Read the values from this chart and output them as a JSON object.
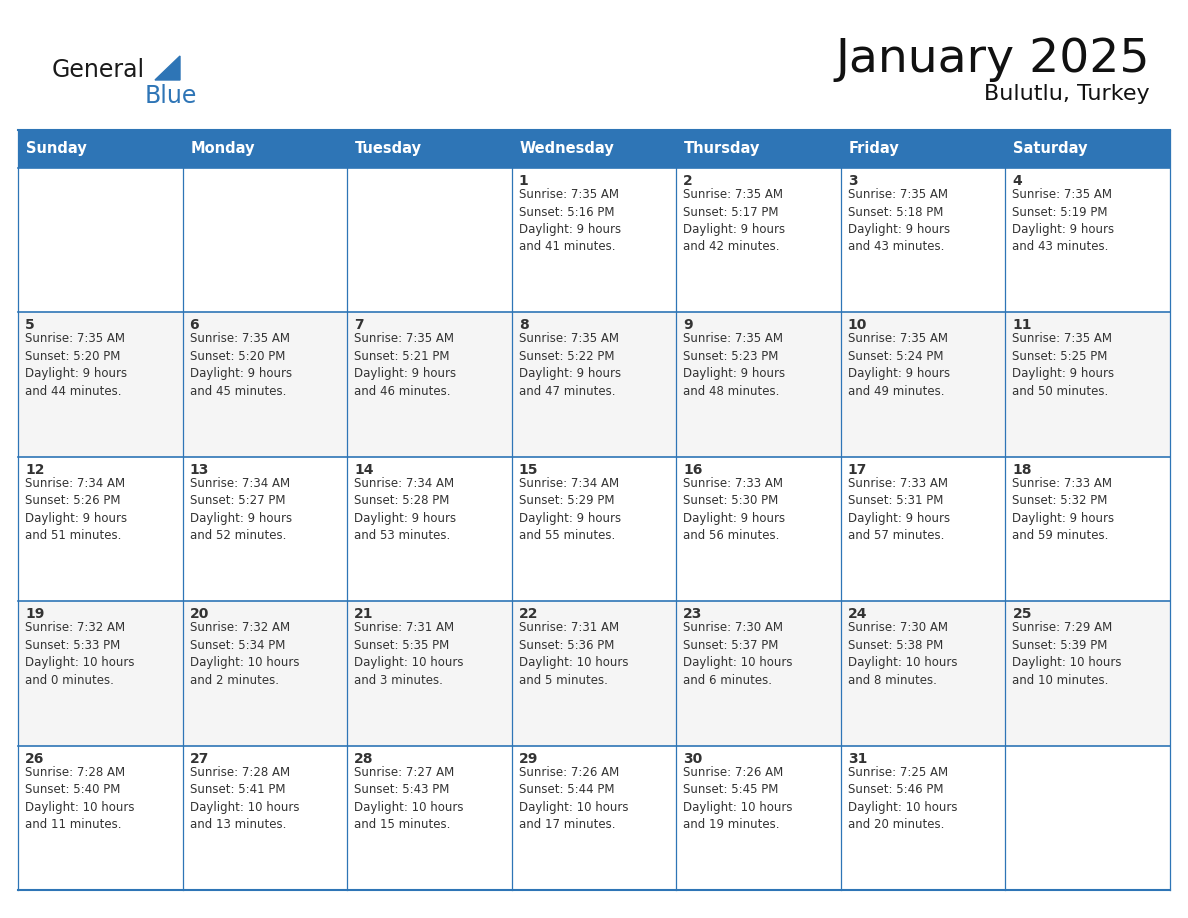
{
  "title": "January 2025",
  "subtitle": "Bulutlu, Turkey",
  "header_color": "#2E75B6",
  "header_text_color": "#FFFFFF",
  "border_color": "#2E75B6",
  "text_color": "#333333",
  "days_of_week": [
    "Sunday",
    "Monday",
    "Tuesday",
    "Wednesday",
    "Thursday",
    "Friday",
    "Saturday"
  ],
  "calendar_data": [
    [
      {
        "day": "",
        "info": ""
      },
      {
        "day": "",
        "info": ""
      },
      {
        "day": "",
        "info": ""
      },
      {
        "day": "1",
        "info": "Sunrise: 7:35 AM\nSunset: 5:16 PM\nDaylight: 9 hours\nand 41 minutes."
      },
      {
        "day": "2",
        "info": "Sunrise: 7:35 AM\nSunset: 5:17 PM\nDaylight: 9 hours\nand 42 minutes."
      },
      {
        "day": "3",
        "info": "Sunrise: 7:35 AM\nSunset: 5:18 PM\nDaylight: 9 hours\nand 43 minutes."
      },
      {
        "day": "4",
        "info": "Sunrise: 7:35 AM\nSunset: 5:19 PM\nDaylight: 9 hours\nand 43 minutes."
      }
    ],
    [
      {
        "day": "5",
        "info": "Sunrise: 7:35 AM\nSunset: 5:20 PM\nDaylight: 9 hours\nand 44 minutes."
      },
      {
        "day": "6",
        "info": "Sunrise: 7:35 AM\nSunset: 5:20 PM\nDaylight: 9 hours\nand 45 minutes."
      },
      {
        "day": "7",
        "info": "Sunrise: 7:35 AM\nSunset: 5:21 PM\nDaylight: 9 hours\nand 46 minutes."
      },
      {
        "day": "8",
        "info": "Sunrise: 7:35 AM\nSunset: 5:22 PM\nDaylight: 9 hours\nand 47 minutes."
      },
      {
        "day": "9",
        "info": "Sunrise: 7:35 AM\nSunset: 5:23 PM\nDaylight: 9 hours\nand 48 minutes."
      },
      {
        "day": "10",
        "info": "Sunrise: 7:35 AM\nSunset: 5:24 PM\nDaylight: 9 hours\nand 49 minutes."
      },
      {
        "day": "11",
        "info": "Sunrise: 7:35 AM\nSunset: 5:25 PM\nDaylight: 9 hours\nand 50 minutes."
      }
    ],
    [
      {
        "day": "12",
        "info": "Sunrise: 7:34 AM\nSunset: 5:26 PM\nDaylight: 9 hours\nand 51 minutes."
      },
      {
        "day": "13",
        "info": "Sunrise: 7:34 AM\nSunset: 5:27 PM\nDaylight: 9 hours\nand 52 minutes."
      },
      {
        "day": "14",
        "info": "Sunrise: 7:34 AM\nSunset: 5:28 PM\nDaylight: 9 hours\nand 53 minutes."
      },
      {
        "day": "15",
        "info": "Sunrise: 7:34 AM\nSunset: 5:29 PM\nDaylight: 9 hours\nand 55 minutes."
      },
      {
        "day": "16",
        "info": "Sunrise: 7:33 AM\nSunset: 5:30 PM\nDaylight: 9 hours\nand 56 minutes."
      },
      {
        "day": "17",
        "info": "Sunrise: 7:33 AM\nSunset: 5:31 PM\nDaylight: 9 hours\nand 57 minutes."
      },
      {
        "day": "18",
        "info": "Sunrise: 7:33 AM\nSunset: 5:32 PM\nDaylight: 9 hours\nand 59 minutes."
      }
    ],
    [
      {
        "day": "19",
        "info": "Sunrise: 7:32 AM\nSunset: 5:33 PM\nDaylight: 10 hours\nand 0 minutes."
      },
      {
        "day": "20",
        "info": "Sunrise: 7:32 AM\nSunset: 5:34 PM\nDaylight: 10 hours\nand 2 minutes."
      },
      {
        "day": "21",
        "info": "Sunrise: 7:31 AM\nSunset: 5:35 PM\nDaylight: 10 hours\nand 3 minutes."
      },
      {
        "day": "22",
        "info": "Sunrise: 7:31 AM\nSunset: 5:36 PM\nDaylight: 10 hours\nand 5 minutes."
      },
      {
        "day": "23",
        "info": "Sunrise: 7:30 AM\nSunset: 5:37 PM\nDaylight: 10 hours\nand 6 minutes."
      },
      {
        "day": "24",
        "info": "Sunrise: 7:30 AM\nSunset: 5:38 PM\nDaylight: 10 hours\nand 8 minutes."
      },
      {
        "day": "25",
        "info": "Sunrise: 7:29 AM\nSunset: 5:39 PM\nDaylight: 10 hours\nand 10 minutes."
      }
    ],
    [
      {
        "day": "26",
        "info": "Sunrise: 7:28 AM\nSunset: 5:40 PM\nDaylight: 10 hours\nand 11 minutes."
      },
      {
        "day": "27",
        "info": "Sunrise: 7:28 AM\nSunset: 5:41 PM\nDaylight: 10 hours\nand 13 minutes."
      },
      {
        "day": "28",
        "info": "Sunrise: 7:27 AM\nSunset: 5:43 PM\nDaylight: 10 hours\nand 15 minutes."
      },
      {
        "day": "29",
        "info": "Sunrise: 7:26 AM\nSunset: 5:44 PM\nDaylight: 10 hours\nand 17 minutes."
      },
      {
        "day": "30",
        "info": "Sunrise: 7:26 AM\nSunset: 5:45 PM\nDaylight: 10 hours\nand 19 minutes."
      },
      {
        "day": "31",
        "info": "Sunrise: 7:25 AM\nSunset: 5:46 PM\nDaylight: 10 hours\nand 20 minutes."
      },
      {
        "day": "",
        "info": ""
      }
    ]
  ],
  "logo_color_general": "#1a1a1a",
  "logo_color_blue": "#2E75B6",
  "logo_triangle_color": "#2E75B6"
}
